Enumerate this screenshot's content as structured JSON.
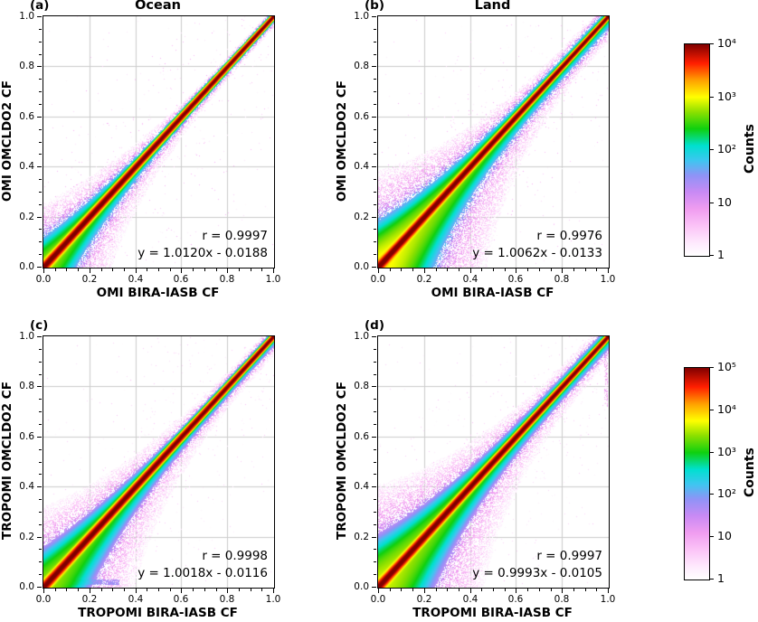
{
  "chart_data": {
    "type": "heatmap",
    "subtype": "2d-histogram-density-scatter",
    "description": "Four-panel log-count density scatter comparison of cloud fraction (CF) retrievals along the 1:1 diagonal",
    "axis": {
      "range": [
        0,
        1
      ],
      "major_ticks": [
        0,
        0.2,
        0.4,
        0.6,
        0.8,
        1
      ],
      "tick_labels": [
        "0.0",
        "0.2",
        "0.4",
        "0.6",
        "0.8",
        "1.0"
      ],
      "minor_tick_step": 0.05,
      "grid": true,
      "grid_color": "#cccccc"
    },
    "colormap_stops": [
      {
        "t": 0.0,
        "color": "#ffffff"
      },
      {
        "t": 0.06,
        "color": "#feeafd"
      },
      {
        "t": 0.14,
        "color": "#fbc4f7"
      },
      {
        "t": 0.22,
        "color": "#f09df0"
      },
      {
        "t": 0.3,
        "color": "#c98af4"
      },
      {
        "t": 0.38,
        "color": "#8f93f6"
      },
      {
        "t": 0.45,
        "color": "#3ec6f0"
      },
      {
        "t": 0.52,
        "color": "#00e0d0"
      },
      {
        "t": 0.6,
        "color": "#0fd00f"
      },
      {
        "t": 0.68,
        "color": "#8ce000"
      },
      {
        "t": 0.75,
        "color": "#ffff00"
      },
      {
        "t": 0.83,
        "color": "#ffa000"
      },
      {
        "t": 0.91,
        "color": "#ff1e00"
      },
      {
        "t": 1.0,
        "color": "#800000"
      }
    ],
    "panels": [
      {
        "id": "a",
        "letter": "(a)",
        "title": "Ocean",
        "xlabel": "OMI BIRA-IASB CF",
        "ylabel": "OMI OMCLDO2 CF",
        "r": 0.9997,
        "fit_slope": 1.012,
        "fit_intercept": -0.0188,
        "annotation_r": "r = 0.9997",
        "annotation_fit": "y = 1.0120x - 0.0188",
        "colorbar_index": 0,
        "max_counts": 10000,
        "render_hints": {
          "peak": 12000,
          "halo": 500,
          "low": 7,
          "asym_below": 1.15,
          "asym_above": 0.95,
          "corner": 15,
          "seed": 101,
          "streaks": []
        }
      },
      {
        "id": "b",
        "letter": "(b)",
        "title": "Land",
        "xlabel": "OMI BIRA-IASB CF",
        "ylabel": "OMI OMCLDO2 CF",
        "r": 0.9976,
        "fit_slope": 1.0062,
        "fit_intercept": -0.0133,
        "annotation_r": "r = 0.9976",
        "annotation_fit": "y = 1.0062x - 0.0133",
        "colorbar_index": 0,
        "max_counts": 10000,
        "render_hints": {
          "peak": 12000,
          "halo": 900,
          "low": 12,
          "asym_below": 2.1,
          "asym_above": 1.5,
          "corner": 25,
          "seed": 202,
          "streaks": []
        }
      },
      {
        "id": "c",
        "letter": "(c)",
        "title": "",
        "xlabel": "TROPOMI BIRA-IASB CF",
        "ylabel": "TROPOMI OMCLDO2 CF",
        "r": 0.9998,
        "fit_slope": 1.0018,
        "fit_intercept": -0.0116,
        "annotation_r": "r = 0.9998",
        "annotation_fit": "y = 1.0018x - 0.0116",
        "colorbar_index": 1,
        "max_counts": 100000,
        "render_hints": {
          "peak": 120000,
          "halo": 2500,
          "low": 15,
          "asym_below": 1.5,
          "asym_above": 1.1,
          "corner": 25,
          "seed": 303,
          "streaks": [
            {
              "axis": "h",
              "pos": 0.02,
              "from": 0.1,
              "to": 0.33,
              "amp": 60
            }
          ]
        }
      },
      {
        "id": "d",
        "letter": "(d)",
        "title": "",
        "xlabel": "TROPOMI BIRA-IASB CF",
        "ylabel": "TROPOMI OMCLDO2 CF",
        "r": 0.9997,
        "fit_slope": 0.9993,
        "fit_intercept": -0.0105,
        "annotation_r": "r = 0.9997",
        "annotation_fit": "y = 0.9993x - 0.0105",
        "colorbar_index": 1,
        "max_counts": 100000,
        "render_hints": {
          "peak": 120000,
          "halo": 3500,
          "low": 20,
          "asym_below": 1.8,
          "asym_above": 1.5,
          "corner": 25,
          "seed": 404,
          "streaks": [
            {
              "axis": "v",
              "pos": 0.99,
              "from": 0.72,
              "to": 0.99,
              "amp": 8
            }
          ]
        }
      }
    ],
    "colorbars": [
      {
        "label": "Counts",
        "scale": "log",
        "min": 1,
        "max": 10000,
        "decades": 4,
        "tick_labels": [
          "10⁴",
          "10³",
          "10²",
          "10",
          "1"
        ]
      },
      {
        "label": "Counts",
        "scale": "log",
        "min": 1,
        "max": 100000,
        "decades": 5,
        "tick_labels": [
          "10⁵",
          "10⁴",
          "10³",
          "10²",
          "10",
          "1"
        ]
      }
    ]
  }
}
